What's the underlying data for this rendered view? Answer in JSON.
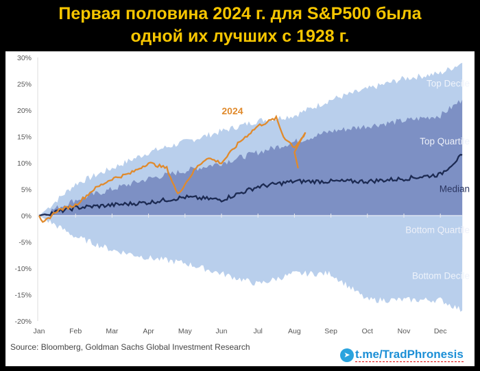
{
  "title_line1": "Первая половина 2024 г. для S&P500 была",
  "title_line2": "одной их лучших с 1928 г.",
  "source": "Source: Bloomberg, Goldman Sachs Global Investment Research",
  "watermark": "t.me/TradPhronesis",
  "chart_data": {
    "type": "area",
    "xlabel": "",
    "ylabel": "",
    "ylim": [
      -20,
      30
    ],
    "y_ticks": [
      "30%",
      "25%",
      "20%",
      "15%",
      "10%",
      "5%",
      "0%",
      "-5%",
      "-10%",
      "-15%",
      "-20%"
    ],
    "y_tick_values": [
      30,
      25,
      20,
      15,
      10,
      5,
      0,
      -5,
      -10,
      -15,
      -20
    ],
    "categories": [
      "Jan",
      "Feb",
      "Mar",
      "Apr",
      "May",
      "Jun",
      "Jul",
      "Aug",
      "Sep",
      "Oct",
      "Nov",
      "Dec"
    ],
    "x_month_index": [
      0,
      1,
      2,
      3,
      4,
      5,
      6,
      7,
      8,
      9,
      10,
      11,
      11.6
    ],
    "bands": [
      {
        "name": "Top Decile",
        "values": [
          0,
          6,
          9,
          12,
          14,
          16,
          18,
          19,
          22,
          24,
          26,
          27,
          29
        ],
        "color": "#b9cfec"
      },
      {
        "name": "Top Quartile",
        "values": [
          0,
          3,
          5,
          7,
          8.5,
          10,
          12,
          14,
          16,
          17,
          18,
          19,
          22
        ],
        "color": "#7d90c4"
      },
      {
        "name": "Bottom Quartile",
        "values": [
          0,
          -2,
          -3.5,
          -3.5,
          -3,
          -4,
          -3,
          -2.5,
          -2,
          -4,
          -4,
          -6,
          -6.5
        ],
        "color": "#7d90c4"
      },
      {
        "name": "Bottom Decile",
        "values": [
          0,
          -4,
          -6.5,
          -8,
          -9,
          -11,
          -13,
          -11,
          -11,
          -16,
          -16,
          -16,
          -18
        ],
        "color": "#b9cfec"
      }
    ],
    "series": [
      {
        "name": "Median",
        "color": "#1c2a52",
        "x": [
          0,
          1,
          2,
          3,
          4,
          5,
          6,
          7,
          8,
          9,
          10,
          11,
          11.6
        ],
        "values": [
          0,
          1.5,
          2,
          2.5,
          3.5,
          3,
          5.5,
          6.5,
          6.5,
          6.5,
          7,
          7.8,
          11.5
        ]
      },
      {
        "name": "2024",
        "color": "#e08a2c",
        "x": [
          0,
          0.1,
          0.5,
          1,
          1.5,
          2,
          2.5,
          3,
          3.5,
          3.8,
          4,
          4.3,
          4.6,
          5,
          5.5,
          6,
          6.5,
          6.7,
          7,
          7.3,
          7,
          7.1
        ],
        "values": [
          0,
          -1.5,
          1,
          2,
          5,
          7,
          8,
          10,
          9,
          4,
          6,
          9,
          11,
          10,
          14,
          17,
          18.5,
          15,
          13,
          15.5,
          12,
          9
        ]
      }
    ]
  }
}
